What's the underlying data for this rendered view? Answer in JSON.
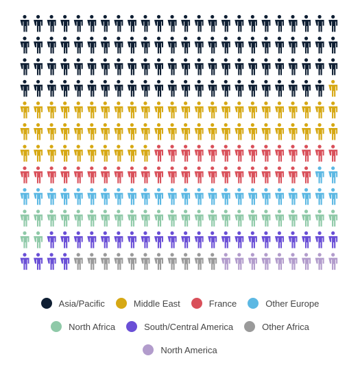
{
  "chart_data": {
    "type": "pictogram",
    "grid_columns": 24,
    "series": [
      {
        "name": "Asia/Pacific",
        "value": 95,
        "color": "#0f1f33"
      },
      {
        "name": "Middle East",
        "value": 59,
        "color": "#d6a814"
      },
      {
        "name": "France",
        "value": 36,
        "color": "#d9505a"
      },
      {
        "name": "Other Europe",
        "value": 26,
        "color": "#5cb8e3"
      },
      {
        "name": "North Africa",
        "value": 26,
        "color": "#8fc9a8"
      },
      {
        "name": "South/Central America",
        "value": 26,
        "color": "#6a4fd6"
      },
      {
        "name": "Other Africa",
        "value": 11,
        "color": "#9a9a9a"
      },
      {
        "name": "North America",
        "value": 9,
        "color": "#b29ccc"
      }
    ]
  }
}
